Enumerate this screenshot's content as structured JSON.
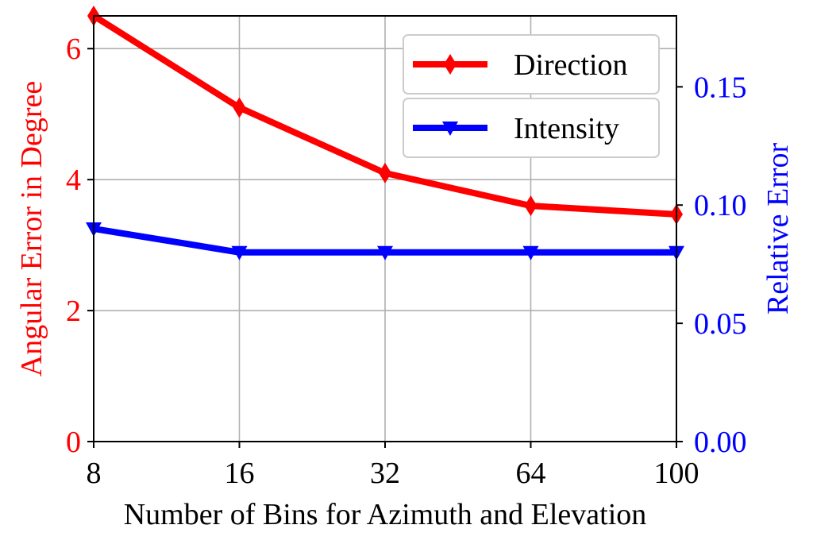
{
  "chart_data": {
    "type": "line",
    "categories": [
      "8",
      "16",
      "32",
      "64",
      "100"
    ],
    "xlabel": "Number of Bins for Azimuth and Elevation",
    "left_axis": {
      "label": "Angular Error in Degree",
      "color": "#ff0000",
      "ylim": [
        0,
        6.5
      ],
      "ticks": [
        "0",
        "2",
        "4",
        "6"
      ]
    },
    "right_axis": {
      "label": "Relative Error",
      "color": "#0000ff",
      "ylim": [
        0,
        0.18
      ],
      "ticks": [
        "0.00",
        "0.05",
        "0.10",
        "0.15"
      ]
    },
    "grid": true,
    "legend_position": "top-right",
    "series": [
      {
        "name": "Direction",
        "axis": "left",
        "color": "#ff0000",
        "marker": "diamond",
        "values": [
          6.5,
          5.1,
          4.1,
          3.6,
          3.47
        ]
      },
      {
        "name": "Intensity",
        "axis": "right",
        "color": "#0000ff",
        "marker": "triangle-down",
        "values": [
          0.09,
          0.08,
          0.08,
          0.08,
          0.08
        ]
      }
    ]
  }
}
